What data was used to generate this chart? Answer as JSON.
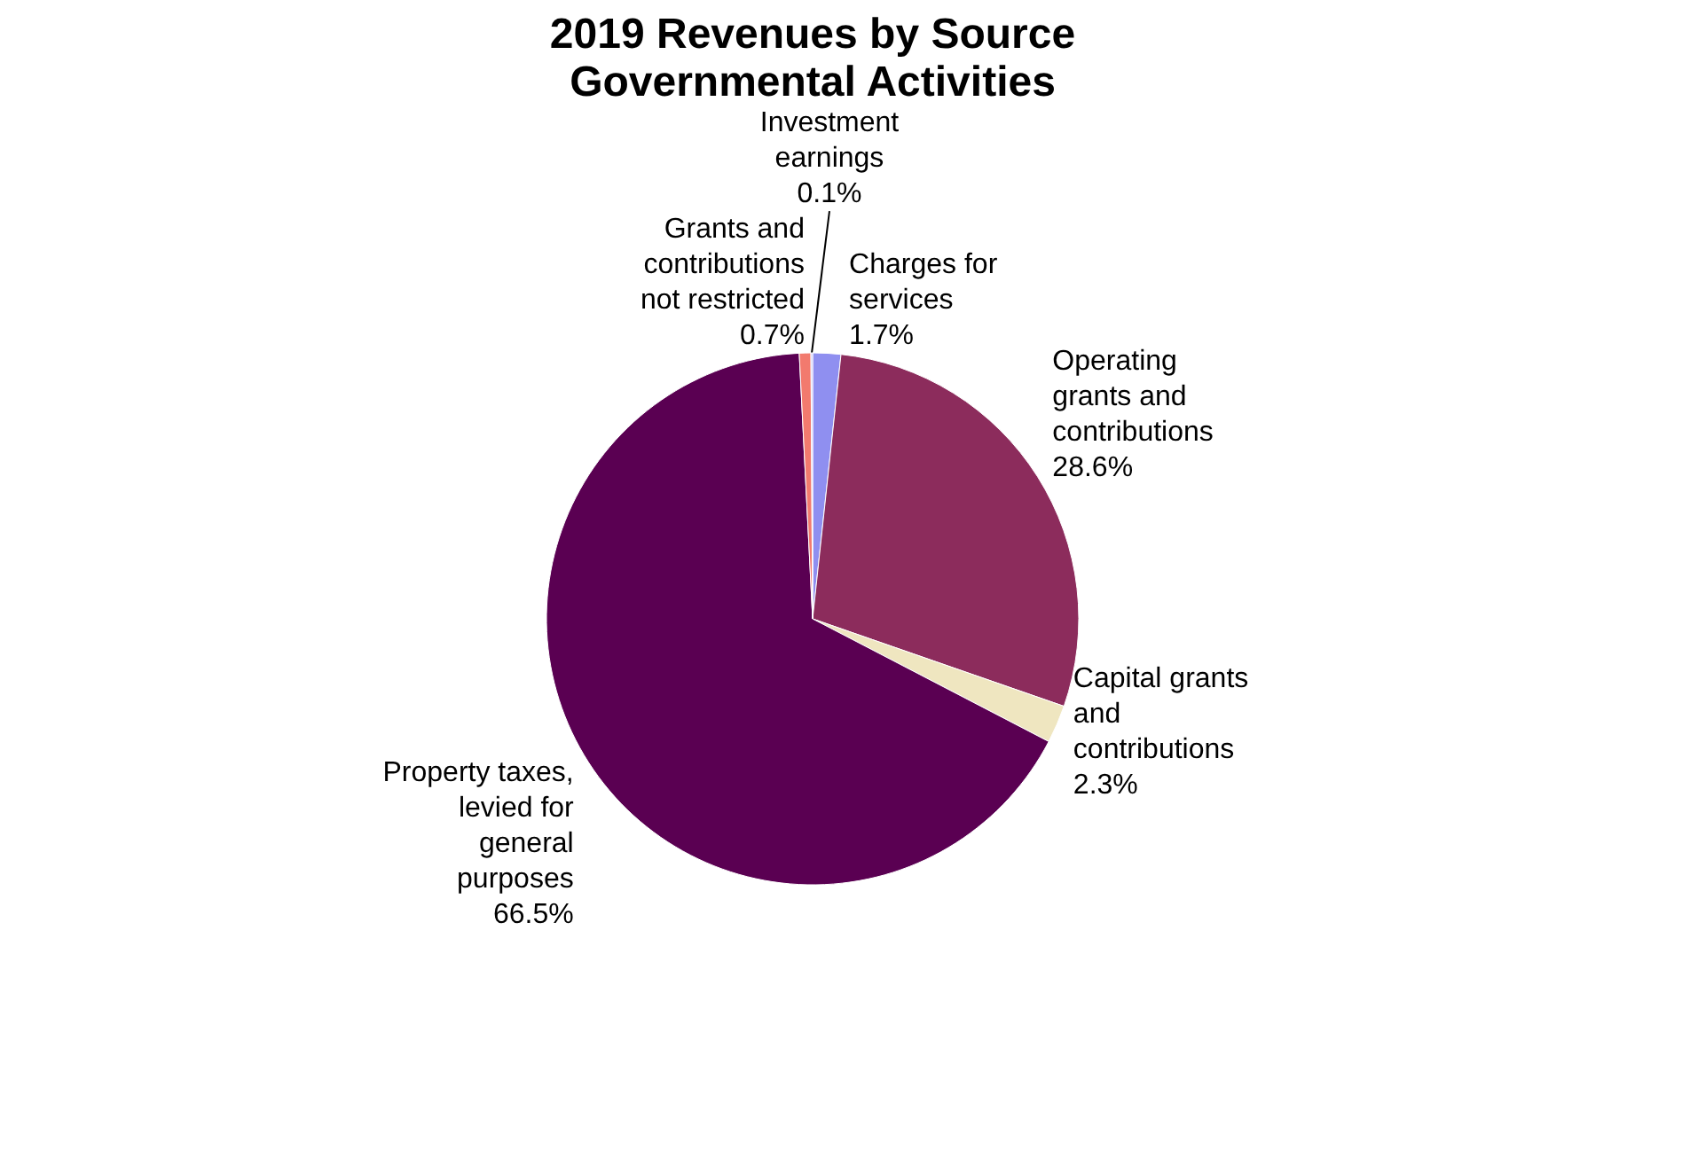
{
  "chart_data": {
    "type": "pie",
    "title": "2019 Revenues by Source",
    "subtitle": "Governmental Activities",
    "categories": [
      "Charges for services",
      "Operating grants and contributions",
      "Capital grants and contributions",
      "Property taxes, levied for general purposes",
      "Grants and contributions not restricted",
      "Investment earnings"
    ],
    "values": [
      1.7,
      28.6,
      2.3,
      66.5,
      0.7,
      0.1
    ],
    "value_labels": [
      "1.7%",
      "28.6%",
      "2.3%",
      "66.5%",
      "0.7%",
      "0.1%"
    ],
    "colors": [
      "#8f8ff0",
      "#8c2c5c",
      "#efe6c0",
      "#5a0052",
      "#f27a6e",
      "#b8b8f8"
    ]
  }
}
